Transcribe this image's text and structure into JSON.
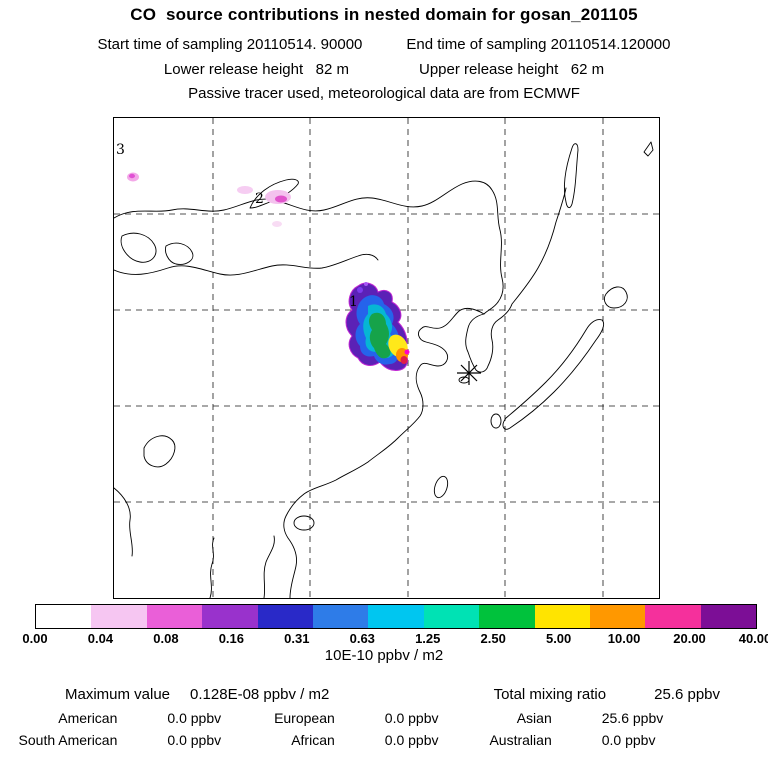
{
  "header": {
    "title": "CO  source contributions in nested domain for gosan_201105",
    "start_time": "Start time of sampling 20110514. 90000",
    "end_time": "End time of sampling 20110514.120000",
    "lower_release": "Lower release height   82 m",
    "upper_release": "Upper release height   62 m",
    "tracer_note": "Passive tracer used, meteorological data are from ECMWF"
  },
  "map": {
    "labels": [
      "1",
      "2",
      "3"
    ]
  },
  "colorbar": {
    "levels": [
      "0.00",
      "0.04",
      "0.08",
      "0.16",
      "0.31",
      "0.63",
      "1.25",
      "2.50",
      "5.00",
      "10.00",
      "20.00",
      "40.00"
    ],
    "colors": [
      "#ffffff",
      "#f6c6f2",
      "#ea5fd8",
      "#9932cc",
      "#2929c8",
      "#2e7ce8",
      "#00c6f0",
      "#00e2b4",
      "#00c23c",
      "#ffe400",
      "#ff9800",
      "#f5309c",
      "#7c0e96"
    ],
    "units": "10E-10 ppbv / m2"
  },
  "stats": {
    "max_label": "Maximum value",
    "max_value": "0.128E-08 ppbv / m2",
    "total_label": "Total mixing ratio",
    "total_value": "25.6 ppbv",
    "contributions": [
      {
        "name": "American",
        "value": "0.0 ppbv"
      },
      {
        "name": "European",
        "value": "0.0 ppbv"
      },
      {
        "name": "Asian",
        "value": "25.6 ppbv"
      },
      {
        "name": "South American",
        "value": "0.0 ppbv"
      },
      {
        "name": "African",
        "value": "0.0 ppbv"
      },
      {
        "name": "Australian",
        "value": "0.0 ppbv"
      }
    ]
  },
  "chart_data": {
    "type": "heatmap",
    "title": "CO source contributions in nested domain for gosan_201105",
    "station": "gosan_201105",
    "sampling_start": "20110514. 90000",
    "sampling_end": "20110514.120000",
    "lower_release_height_m": 82,
    "upper_release_height_m": 62,
    "tracer": "Passive tracer",
    "meteorology": "ECMWF",
    "colorbar_levels": [
      0.0,
      0.04,
      0.08,
      0.16,
      0.31,
      0.63,
      1.25,
      2.5,
      5.0,
      10.0,
      20.0,
      40.0
    ],
    "colorbar_units": "10E-10 ppbv / m2",
    "maximum_value": "0.128E-08 ppbv / m2",
    "total_mixing_ratio_ppbv": 25.6,
    "contributions_ppbv": {
      "American": 0.0,
      "European": 0.0,
      "Asian": 25.6,
      "South American": 0.0,
      "African": 0.0,
      "Australian": 0.0
    },
    "numbered_source_regions": [
      1,
      2,
      3
    ],
    "legend_position": "bottom",
    "grid": "dashed lat/lon gridlines over East Asia map"
  }
}
